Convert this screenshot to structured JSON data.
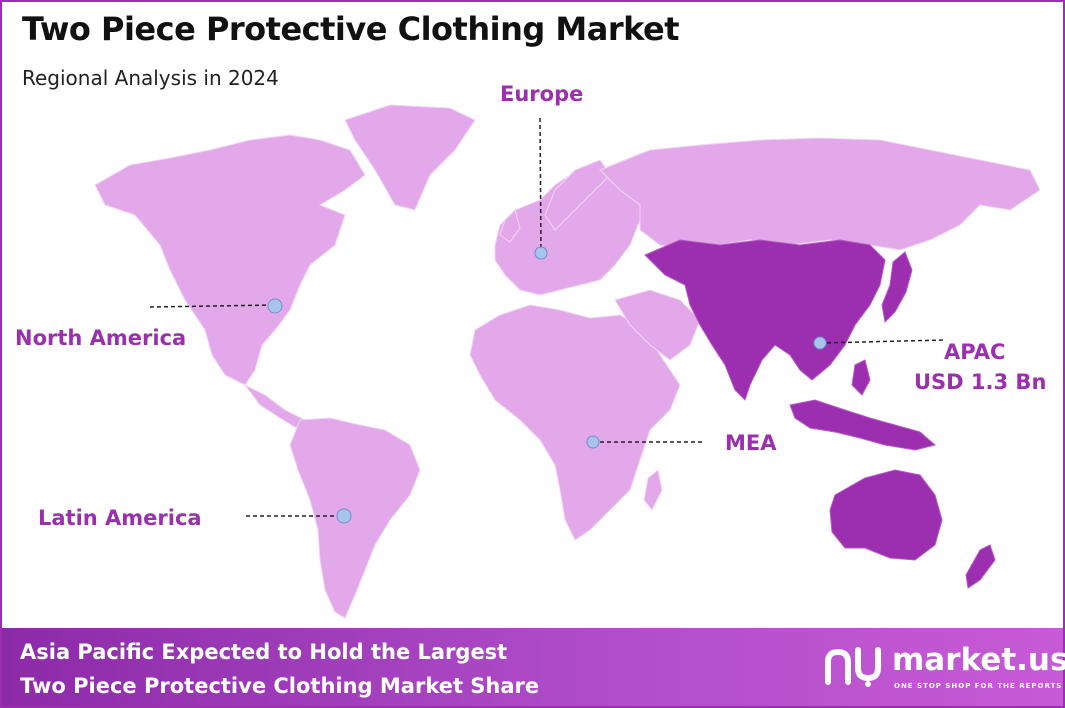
{
  "header": {
    "title": "Two Piece Protective Clothing Market",
    "subtitle": "Regional Analysis in 2024"
  },
  "colors": {
    "land_light": "#e2a8ea",
    "land_highlight": "#9b2fb0",
    "accent": "#9b2fb0",
    "marker": "#a9c4ea"
  },
  "regions": {
    "europe": {
      "label": "Europe"
    },
    "north_america": {
      "label": "North America"
    },
    "latin_america": {
      "label": "Latin America"
    },
    "mea": {
      "label": "MEA"
    },
    "apac": {
      "label": "APAC",
      "value": "USD 1.3 Bn",
      "highlighted": true
    }
  },
  "footer": {
    "line1": "Asia Pacific Expected to Hold the Largest",
    "line2": "Two Piece Protective Clothing Market Share"
  },
  "brand": {
    "name": "market.us",
    "tagline": "ONE STOP SHOP FOR THE REPORTS",
    "logo_icon": "market-us-logo-icon"
  }
}
